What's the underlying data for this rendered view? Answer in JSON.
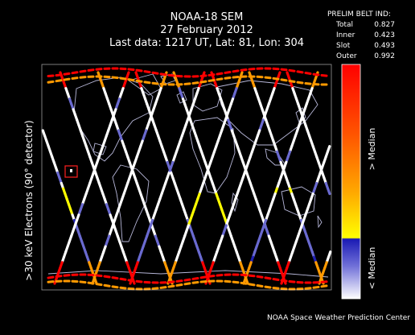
{
  "header": {
    "satellite": "NOAA-18 SEM",
    "date": "27 February 2012",
    "last_data": "Last data: 1217 UT, Lat: 81, Lon: 304"
  },
  "belt_index": {
    "title": "PRELIM BELT IND:",
    "rows": [
      {
        "label": "Total",
        "value": "0.827"
      },
      {
        "label": "Inner",
        "value": "0.423"
      },
      {
        "label": "Slot",
        "value": "0.493"
      },
      {
        "label": "Outer",
        "value": "0.992"
      }
    ]
  },
  "axis": {
    "ylabel": ">30 keV Electrons (90° detector)"
  },
  "colorbar": {
    "upper_label": "> Median",
    "lower_label": "< Median",
    "colors": {
      "above_top": "#ff0000",
      "above_mid": "#ff9900",
      "above_low": "#ffff00",
      "below_top": "#2020b0",
      "below_mid": "#6a6ad0",
      "below_low": "#ffffff"
    }
  },
  "footer": {
    "credit": "NOAA Space Weather Prediction Center"
  },
  "map": {
    "background": "#000000",
    "coastline_color": "#d8d8ff",
    "frame_color": "#ffffff",
    "marker_color": "#ff2020"
  }
}
